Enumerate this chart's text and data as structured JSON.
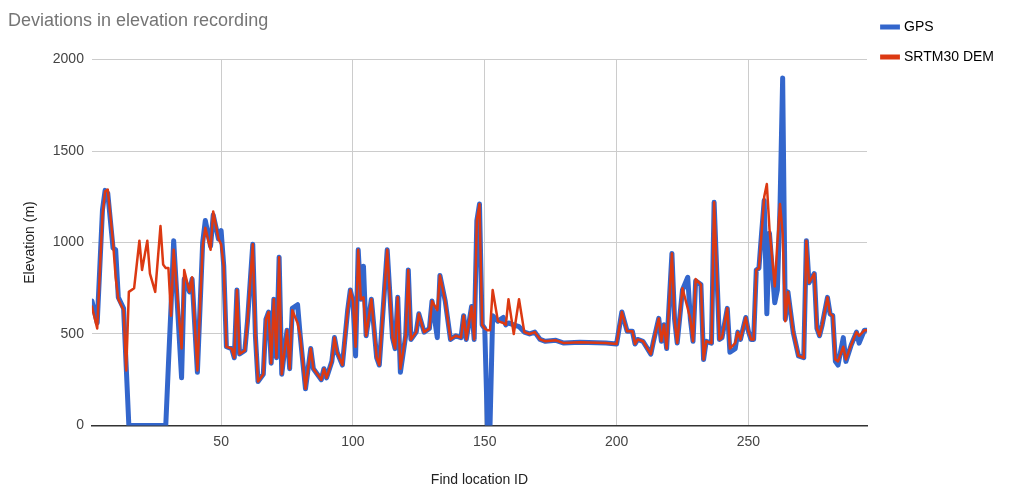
{
  "chart_data": {
    "type": "line",
    "title": "Deviations in elevation recording",
    "xlabel": "Find location ID",
    "ylabel": "Elevation (m)",
    "x": [
      1,
      3,
      5,
      6,
      7,
      9,
      10,
      11,
      13,
      14,
      15,
      17,
      19,
      20,
      22,
      23,
      25,
      27,
      28,
      29,
      30,
      31,
      32,
      35,
      36,
      38,
      39,
      41,
      43,
      44,
      46,
      47,
      49,
      50,
      51,
      52,
      54,
      55,
      56,
      57,
      59,
      60,
      62,
      63,
      64,
      66,
      67,
      68,
      69,
      70,
      71,
      72,
      73,
      75,
      76,
      77,
      79,
      80,
      82,
      84,
      85,
      88,
      89,
      90,
      92,
      93,
      94,
      96,
      98,
      99,
      100,
      101,
      102,
      103,
      104,
      105,
      107,
      109,
      110,
      113,
      115,
      116,
      117,
      118,
      120,
      121,
      122,
      124,
      125,
      127,
      129,
      130,
      132,
      133,
      135,
      137,
      139,
      141,
      142,
      143,
      145,
      146,
      147,
      148,
      149,
      150,
      151,
      152,
      153,
      155,
      157,
      158,
      159,
      161,
      163,
      165,
      167,
      169,
      171,
      173,
      177,
      180,
      186,
      196,
      200,
      202,
      204,
      206,
      207,
      208,
      210,
      213,
      214,
      216,
      217,
      218,
      219,
      221,
      222,
      223,
      225,
      227,
      228,
      229,
      230,
      232,
      233,
      234,
      236,
      237,
      239,
      240,
      242,
      243,
      245,
      246,
      247,
      249,
      250,
      251,
      252,
      253,
      254,
      255,
      256,
      257,
      258,
      260,
      261,
      262,
      263,
      264,
      265,
      267,
      269,
      271,
      272,
      273,
      275,
      276,
      277,
      278,
      280,
      281,
      282,
      283,
      284,
      286,
      287,
      289,
      291,
      292,
      294,
      295
    ],
    "series": [
      {
        "name": "GPS",
        "color": "#3366cc",
        "values": [
          680,
          560,
          1180,
          1285,
          1270,
          970,
          960,
          700,
          640,
          320,
          0,
          0,
          0,
          0,
          0,
          0,
          0,
          0,
          0,
          0,
          330,
          650,
          1010,
          260,
          800,
          730,
          800,
          290,
          1000,
          1120,
          980,
          1150,
          1020,
          1065,
          870,
          430,
          420,
          370,
          740,
          390,
          410,
          570,
          990,
          490,
          240,
          280,
          580,
          620,
          340,
          690,
          370,
          920,
          280,
          520,
          310,
          640,
          660,
          490,
          200,
          420,
          310,
          250,
          310,
          260,
          350,
          480,
          400,
          330,
          630,
          740,
          680,
          380,
          960,
          690,
          870,
          490,
          690,
          370,
          330,
          960,
          480,
          420,
          700,
          290,
          490,
          850,
          470,
          510,
          610,
          510,
          530,
          680,
          480,
          820,
          680,
          470,
          490,
          480,
          600,
          470,
          650,
          470,
          1120,
          1210,
          550,
          530,
          0,
          0,
          600,
          570,
          590,
          550,
          560,
          550,
          540,
          510,
          500,
          510,
          470,
          460,
          465,
          450,
          455,
          450,
          445,
          620,
          515,
          515,
          445,
          470,
          460,
          390,
          460,
          585,
          460,
          550,
          420,
          940,
          580,
          450,
          740,
          810,
          580,
          460,
          790,
          770,
          360,
          460,
          450,
          1220,
          470,
          480,
          640,
          400,
          420,
          510,
          470,
          590,
          515,
          470,
          470,
          850,
          860,
          1050,
          1230,
          610,
          1050,
          670,
          740,
          1200,
          1900,
          580,
          730,
          510,
          380,
          370,
          1010,
          780,
          830,
          530,
          490,
          550,
          700,
          610,
          600,
          350,
          330,
          480,
          350,
          440,
          510,
          450,
          520,
          520
        ]
      },
      {
        "name": "SRTM30 DEM",
        "color": "#dc3912",
        "values": [
          650,
          530,
          1150,
          1280,
          1290,
          1000,
          810,
          690,
          630,
          300,
          730,
          750,
          1010,
          850,
          1010,
          830,
          730,
          1090,
          880,
          860,
          860,
          600,
          960,
          420,
          850,
          730,
          810,
          300,
          980,
          1080,
          960,
          1170,
          1020,
          990,
          870,
          430,
          420,
          370,
          740,
          390,
          410,
          570,
          990,
          490,
          240,
          280,
          580,
          620,
          340,
          690,
          370,
          920,
          280,
          520,
          310,
          630,
          560,
          490,
          200,
          420,
          310,
          250,
          310,
          260,
          350,
          480,
          400,
          330,
          630,
          740,
          680,
          430,
          960,
          690,
          700,
          490,
          690,
          370,
          330,
          960,
          480,
          420,
          700,
          310,
          490,
          850,
          470,
          510,
          610,
          510,
          530,
          680,
          630,
          820,
          680,
          470,
          490,
          480,
          600,
          470,
          650,
          470,
          1120,
          1210,
          550,
          530,
          520,
          520,
          740,
          570,
          560,
          550,
          690,
          500,
          690,
          510,
          500,
          510,
          470,
          460,
          465,
          450,
          455,
          450,
          445,
          620,
          515,
          515,
          445,
          470,
          460,
          390,
          460,
          585,
          460,
          550,
          420,
          940,
          580,
          450,
          750,
          640,
          580,
          460,
          800,
          770,
          360,
          460,
          450,
          1220,
          470,
          480,
          640,
          420,
          450,
          510,
          470,
          590,
          515,
          470,
          470,
          850,
          860,
          1050,
          1250,
          1320,
          1075,
          760,
          1000,
          1210,
          1050,
          570,
          730,
          510,
          380,
          370,
          1010,
          780,
          830,
          530,
          490,
          550,
          700,
          610,
          600,
          360,
          350,
          430,
          360,
          440,
          510,
          490,
          520,
          520
        ]
      }
    ],
    "xlim": [
      1,
      295
    ],
    "xticks": [
      50,
      100,
      150,
      200,
      250
    ],
    "ylim": [
      0,
      2000
    ],
    "yticks": [
      0,
      500,
      1000,
      1500,
      2000
    ],
    "grid": true,
    "legend": "right",
    "marker": "none",
    "line_style": "solid"
  }
}
